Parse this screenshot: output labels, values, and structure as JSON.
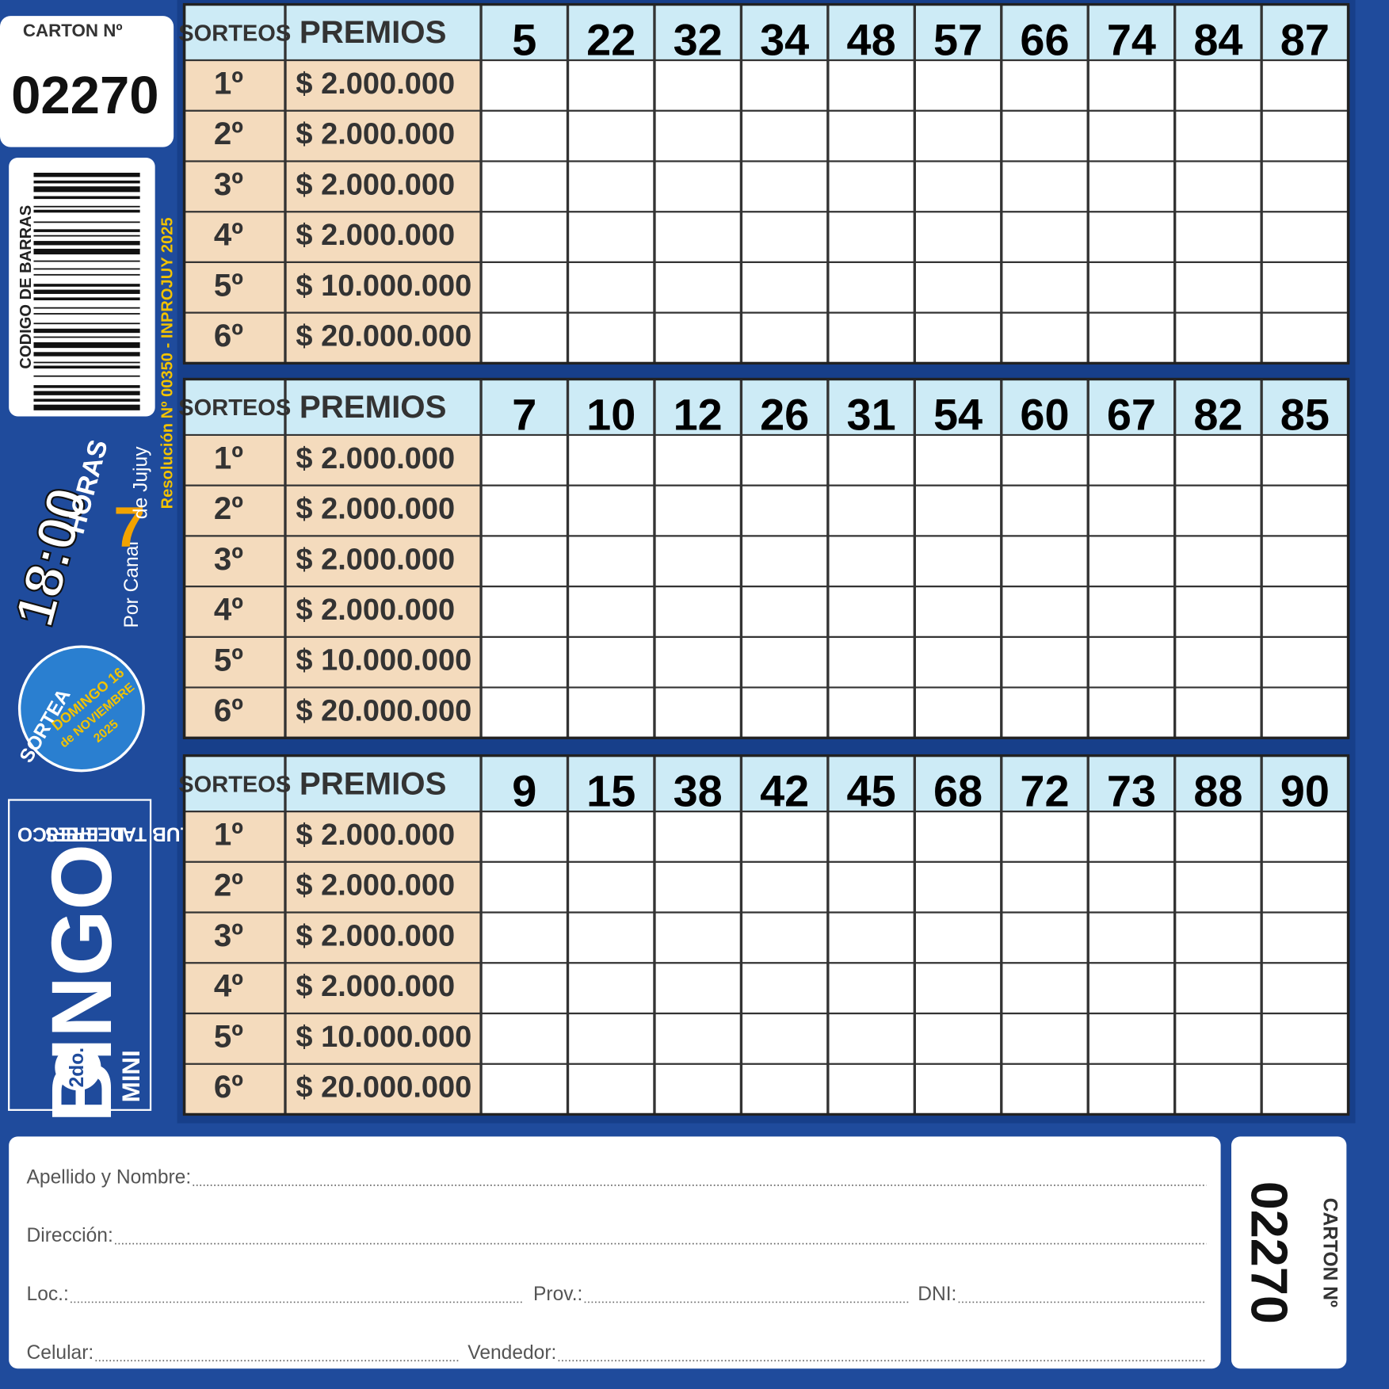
{
  "carton": {
    "label": "CARTON Nº",
    "number": "02270"
  },
  "barcode_label": "CODIGO DE BARRAS",
  "resolution": "Resolución Nº 00350 - INPROJUY 2025",
  "broadcast": {
    "time": "18:00",
    "hours": "HORAS",
    "por_canal": "Por Canal",
    "channel": "7",
    "de_jujuy": "de Jujuy"
  },
  "badge": {
    "sortea": "SORTEA",
    "day": "DOMINGO 16",
    "month": "de NOVIEMBRE",
    "year": "2025"
  },
  "logo": {
    "edition": "2do.",
    "mini": "MINI",
    "bingo": "BINGO",
    "club": "CLUB TALLERES",
    "place": "DE PERICO"
  },
  "tables": [
    {
      "headers": [
        "SORTEOS",
        "PREMIOS"
      ],
      "numbers": [
        "5",
        "22",
        "32",
        "34",
        "48",
        "57",
        "66",
        "74",
        "84",
        "87"
      ],
      "rows": [
        [
          "1º",
          "$ 2.000.000"
        ],
        [
          "2º",
          "$ 2.000.000"
        ],
        [
          "3º",
          "$ 2.000.000"
        ],
        [
          "4º",
          "$ 2.000.000"
        ],
        [
          "5º",
          "$ 10.000.000"
        ],
        [
          "6º",
          "$ 20.000.000"
        ]
      ]
    },
    {
      "headers": [
        "SORTEOS",
        "PREMIOS"
      ],
      "numbers": [
        "7",
        "10",
        "12",
        "26",
        "31",
        "54",
        "60",
        "67",
        "82",
        "85"
      ],
      "rows": [
        [
          "1º",
          "$ 2.000.000"
        ],
        [
          "2º",
          "$ 2.000.000"
        ],
        [
          "3º",
          "$ 2.000.000"
        ],
        [
          "4º",
          "$ 2.000.000"
        ],
        [
          "5º",
          "$ 10.000.000"
        ],
        [
          "6º",
          "$ 20.000.000"
        ]
      ]
    },
    {
      "headers": [
        "SORTEOS",
        "PREMIOS"
      ],
      "numbers": [
        "9",
        "15",
        "38",
        "42",
        "45",
        "68",
        "72",
        "73",
        "88",
        "90"
      ],
      "rows": [
        [
          "1º",
          "$ 2.000.000"
        ],
        [
          "2º",
          "$ 2.000.000"
        ],
        [
          "3º",
          "$ 2.000.000"
        ],
        [
          "4º",
          "$ 2.000.000"
        ],
        [
          "5º",
          "$ 10.000.000"
        ],
        [
          "6º",
          "$ 20.000.000"
        ]
      ]
    }
  ],
  "form": {
    "fields": [
      [
        "Apellido y Nombre:"
      ],
      [
        "Dirección:"
      ],
      [
        "Loc.:",
        "Prov.:",
        "DNI:"
      ],
      [
        "Celular:",
        "Vendedor:"
      ]
    ]
  },
  "stub": {
    "label": "CARTON Nº",
    "number": "02270"
  }
}
